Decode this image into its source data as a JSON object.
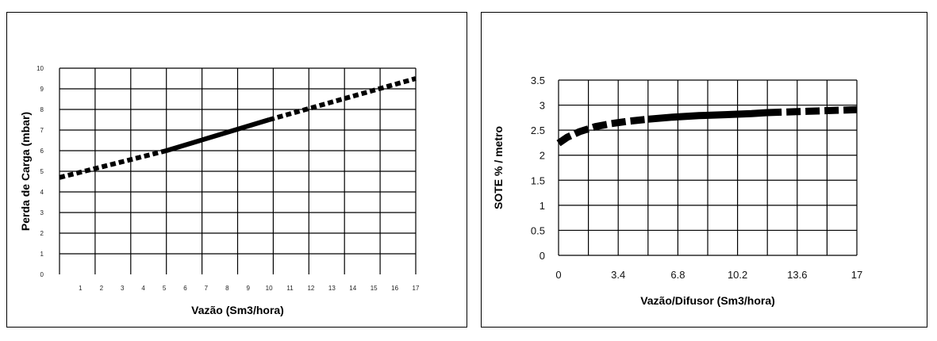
{
  "chart_data": [
    {
      "type": "line",
      "xlabel": "Vazão (Sm3/hora)",
      "ylabel": "Perda de Carga (mbar)",
      "x_ticks": [
        "1",
        "2",
        "3",
        "4",
        "5",
        "6",
        "7",
        "8",
        "9",
        "10",
        "11",
        "12",
        "13",
        "14",
        "15",
        "16",
        "17"
      ],
      "y_ticks": [
        "0",
        "1",
        "2",
        "3",
        "4",
        "5",
        "6",
        "7",
        "8",
        "9",
        "10"
      ],
      "xlim": [
        0,
        17
      ],
      "ylim": [
        0,
        10
      ],
      "series": [
        {
          "name": "dashed-low",
          "style": "dashed",
          "x": [
            0,
            5.1
          ],
          "y": [
            4.7,
            6.0
          ]
        },
        {
          "name": "solid",
          "style": "solid",
          "x": [
            5.1,
            10
          ],
          "y": [
            6.0,
            7.5
          ]
        },
        {
          "name": "dashed-high",
          "style": "dashed",
          "x": [
            10,
            17
          ],
          "y": [
            7.5,
            9.5
          ]
        }
      ]
    },
    {
      "type": "line",
      "xlabel": "Vazão/Difusor (Sm3/hora)",
      "ylabel": "SOTE % / metro",
      "x_ticks": [
        "0",
        "3.4",
        "6.8",
        "10.2",
        "13.6",
        "17"
      ],
      "y_ticks": [
        "0",
        "0.5",
        "1",
        "1.5",
        "2",
        "2.5",
        "3",
        "3.5"
      ],
      "xlim": [
        0,
        17
      ],
      "ylim": [
        0,
        3.5
      ],
      "series": [
        {
          "name": "dashed-start",
          "style": "dashed",
          "x": [
            0,
            0.5,
            1.2,
            2.1,
            3.0,
            4.0,
            5.1
          ],
          "y": [
            2.24,
            2.36,
            2.47,
            2.57,
            2.63,
            2.68,
            2.72
          ]
        },
        {
          "name": "solid",
          "style": "solid",
          "x": [
            5.1,
            6.5,
            8.0,
            9.5,
            11.0,
            11.9
          ],
          "y": [
            2.72,
            2.76,
            2.79,
            2.81,
            2.83,
            2.85
          ]
        },
        {
          "name": "dashed-end",
          "style": "dashed",
          "x": [
            11.9,
            13.6,
            15.3,
            17
          ],
          "y": [
            2.85,
            2.87,
            2.89,
            2.91
          ]
        }
      ]
    }
  ]
}
